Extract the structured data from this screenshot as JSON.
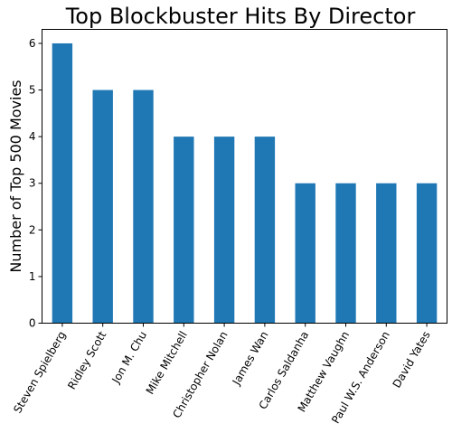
{
  "chart_data": {
    "type": "bar",
    "title": "Top Blockbuster Hits By Director",
    "xlabel": "",
    "ylabel": "Number of Top 500 Movies",
    "categories": [
      "Steven Spielberg",
      "Ridley Scott",
      "Jon M. Chu",
      "Mike Mitchell",
      "Christopher Nolan",
      "James Wan",
      "Carlos Saldanha",
      "Matthew Vaughn",
      "Paul W.S. Anderson",
      "David Yates"
    ],
    "values": [
      6,
      5,
      5,
      4,
      4,
      4,
      3,
      3,
      3,
      3
    ],
    "yticks": [
      "0",
      "1",
      "2",
      "3",
      "4",
      "5",
      "6"
    ],
    "ylim": [
      0,
      6.3
    ],
    "grid": false,
    "legend": "none",
    "bar_color": "#1f77b4"
  }
}
